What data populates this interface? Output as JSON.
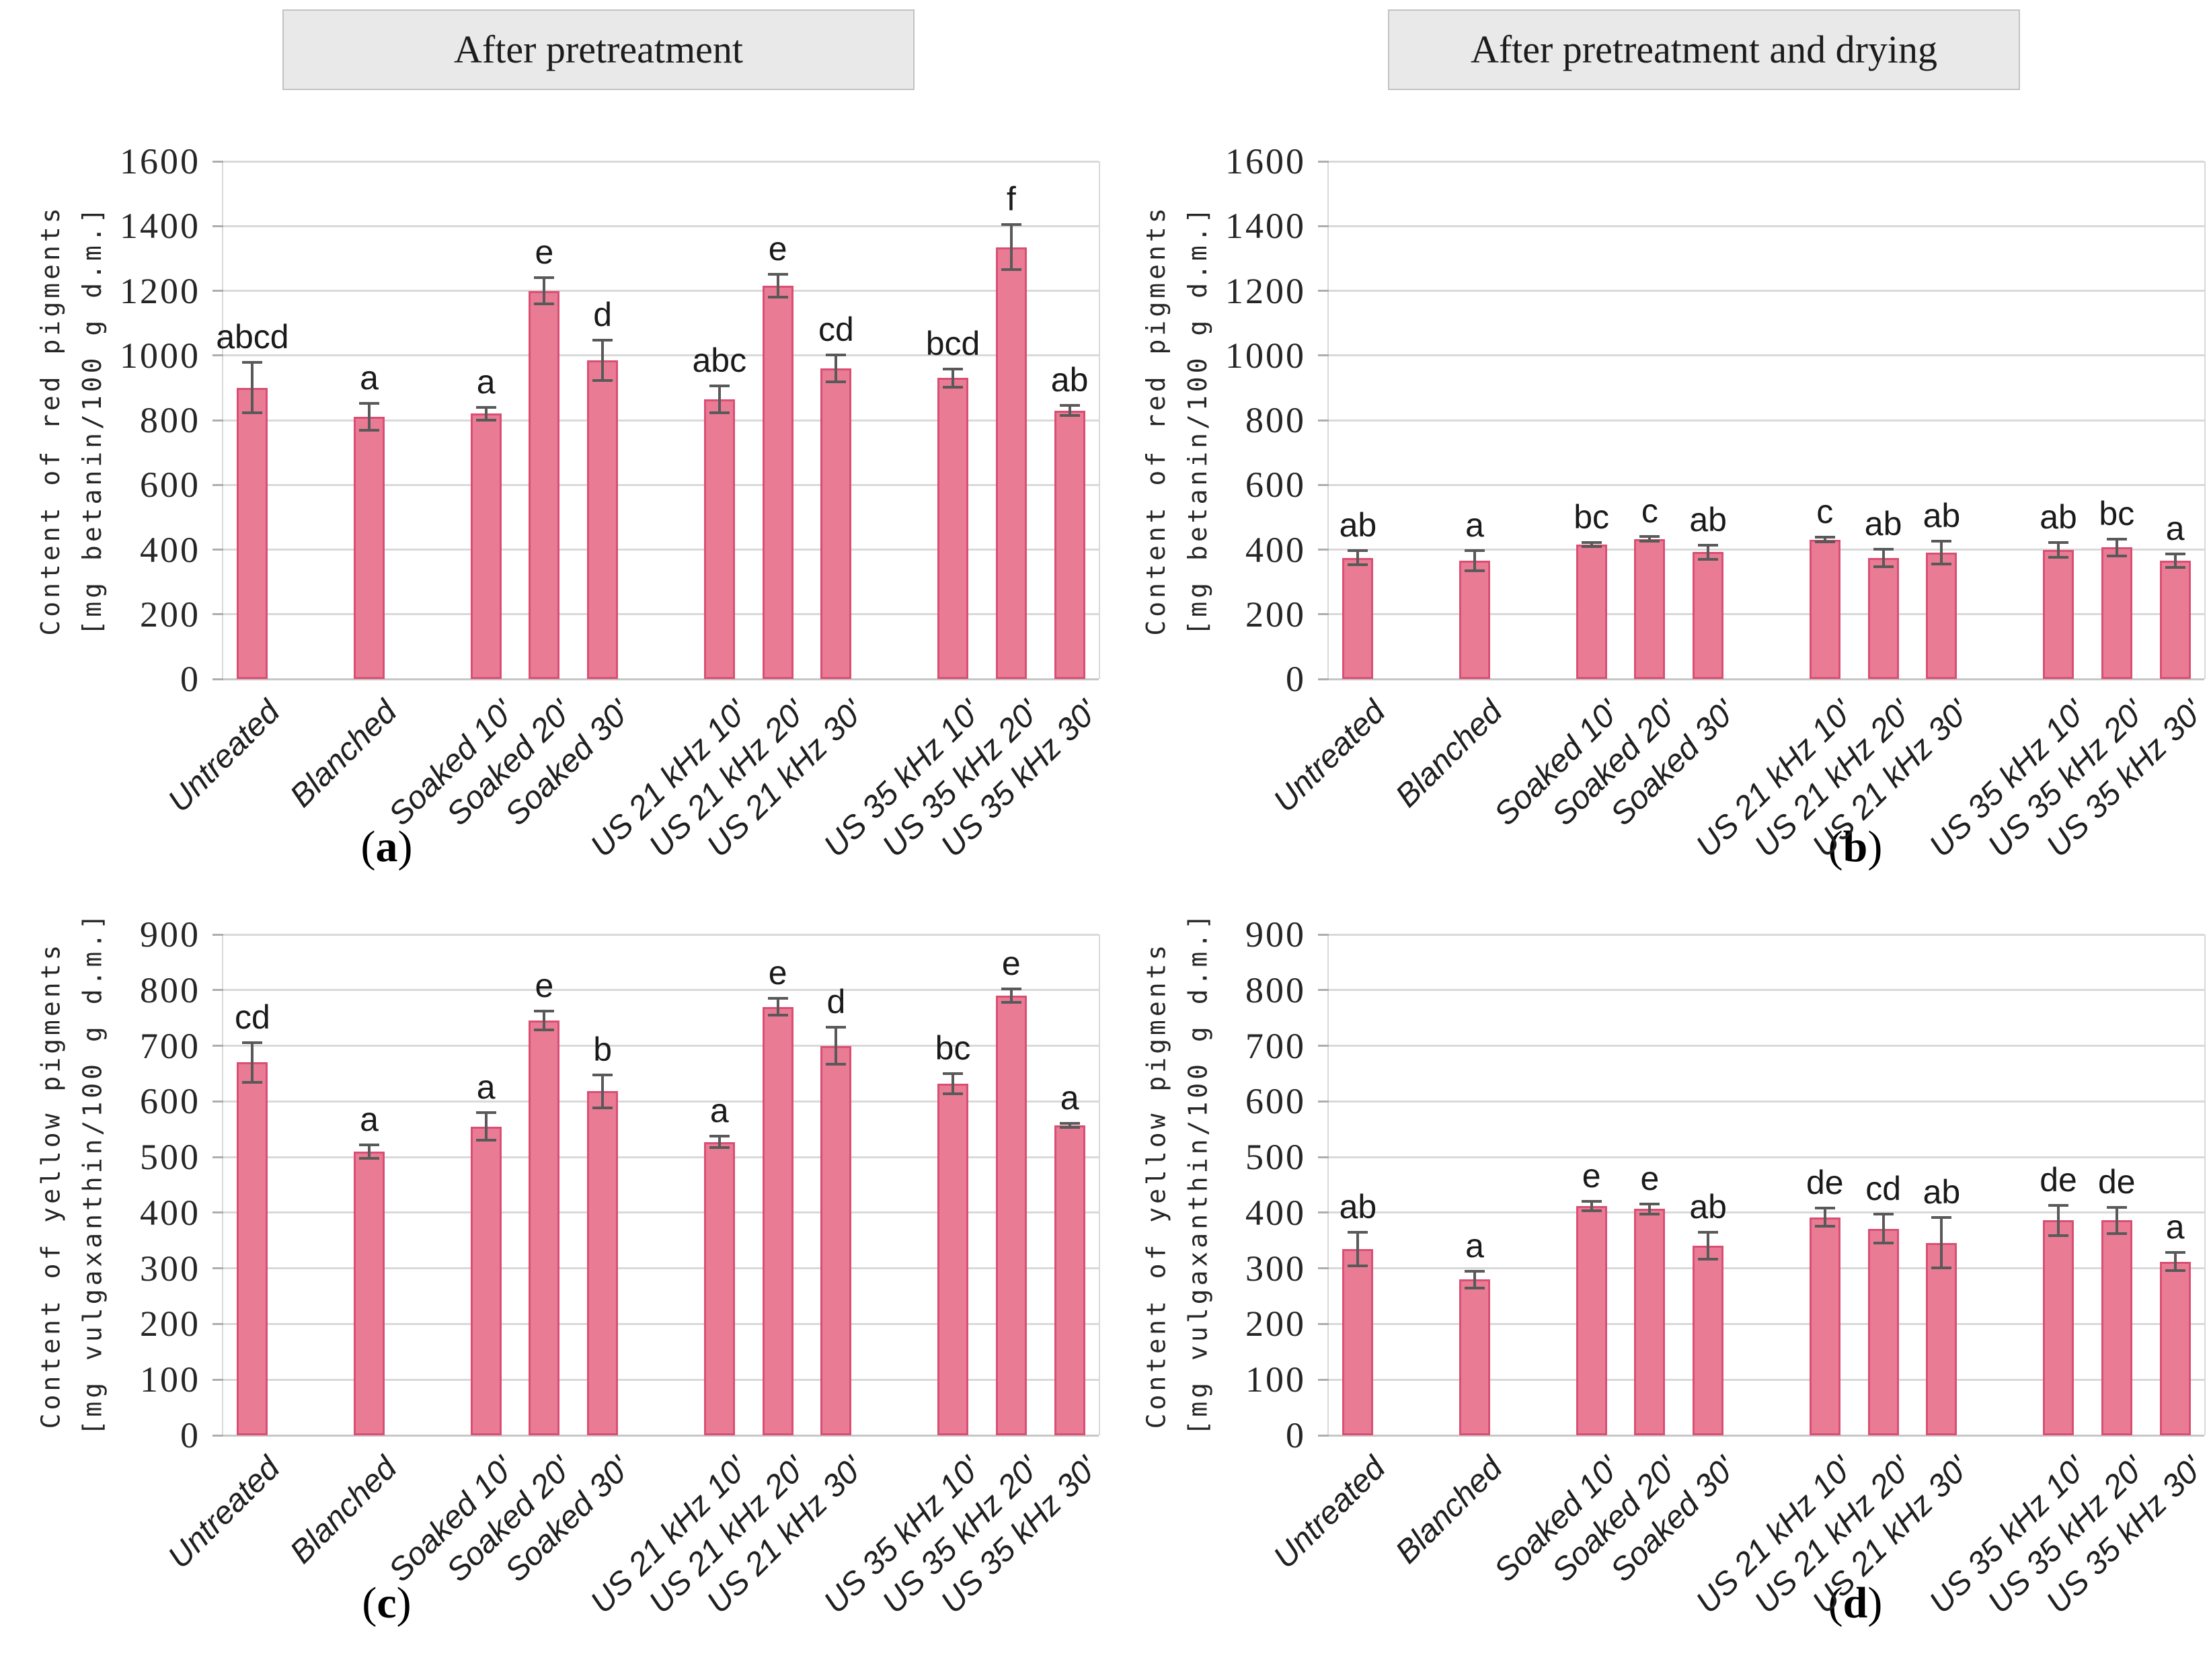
{
  "style": {
    "bar_fill": "#E97C94",
    "bar_edge": "#D94F74",
    "error_color": "#595959",
    "grid_color": "#D9D9D9",
    "baseline_color": "#C6C6C6",
    "header_bg": "#E9E9E9",
    "header_border": "#C3C3C3"
  },
  "chart_data": [
    {
      "panel": "a",
      "type": "bar",
      "header": "After pretreatment",
      "ylabel_lines": [
        "Content of red pigments",
        "[mg betanin/100 g d.m.]"
      ],
      "ylim": [
        0,
        1600
      ],
      "ytick_step": 200,
      "grid": true,
      "legend": "none",
      "categories": [
        "Untreated",
        "Blanched",
        "Soaked 10'",
        "Soaked 20'",
        "Soaked 30'",
        "US 21 kHz 10'",
        "US 21 kHz 20'",
        "US 21 kHz 30'",
        "US 35 kHz 10'",
        "US 35 kHz 20'",
        "US 35 kHz 30'"
      ],
      "values": [
        900,
        810,
        820,
        1200,
        985,
        865,
        1215,
        960,
        930,
        1335,
        830
      ],
      "errors": [
        78,
        42,
        20,
        40,
        62,
        42,
        35,
        42,
        28,
        70,
        15
      ],
      "sig_letters": [
        "abcd",
        "a",
        "a",
        "e",
        "d",
        "abc",
        "e",
        "cd",
        "bcd",
        "f",
        "ab"
      ],
      "caption": {
        "open": "(",
        "letter": "a",
        "close": ")"
      }
    },
    {
      "panel": "b",
      "type": "bar",
      "header": "After pretreatment and drying",
      "ylabel_lines": [
        "Content of red pigments",
        "[mg betanin/100 g d.m.]"
      ],
      "ylim": [
        0,
        1600
      ],
      "ytick_step": 200,
      "grid": true,
      "legend": "none",
      "categories": [
        "Untreated",
        "Blanched",
        "Soaked 10'",
        "Soaked 20'",
        "Soaked 30'",
        "US 21 kHz 10'",
        "US 21 kHz 20'",
        "US 21 kHz 30'",
        "US 35 kHz 10'",
        "US 35 kHz 20'",
        "US 35 kHz 30'"
      ],
      "values": [
        375,
        365,
        415,
        433,
        392,
        431,
        374,
        390,
        399,
        407,
        366
      ],
      "errors": [
        21,
        31,
        6,
        7,
        22,
        8,
        27,
        35,
        22,
        26,
        21
      ],
      "sig_letters": [
        "ab",
        "a",
        "bc",
        "c",
        "ab",
        "c",
        "ab",
        "ab",
        "ab",
        "bc",
        "a"
      ],
      "caption": {
        "open": "(",
        "letter": "b",
        "close": ")"
      }
    },
    {
      "panel": "c",
      "type": "bar",
      "header": "",
      "ylabel_lines": [
        "Content of yellow pigments",
        "[mg vulgaxanthin/100 g d.m.]"
      ],
      "ylim": [
        0,
        900
      ],
      "ytick_step": 100,
      "grid": true,
      "legend": "none",
      "categories": [
        "Untreated",
        "Blanched",
        "Soaked 10'",
        "Soaked 20'",
        "Soaked 30'",
        "US 21 kHz 10'",
        "US 21 kHz 20'",
        "US 21 kHz 30'",
        "US 35 kHz 10'",
        "US 35 kHz 20'",
        "US 35 kHz 30'"
      ],
      "values": [
        670,
        510,
        555,
        745,
        618,
        527,
        770,
        700,
        632,
        790,
        557
      ],
      "errors": [
        36,
        12,
        25,
        17,
        30,
        10,
        15,
        33,
        18,
        12,
        4
      ],
      "sig_letters": [
        "cd",
        "a",
        "a",
        "e",
        "b",
        "a",
        "e",
        "d",
        "bc",
        "e",
        "a"
      ],
      "caption": {
        "open": "(",
        "letter": "c",
        "close": ")"
      }
    },
    {
      "panel": "d",
      "type": "bar",
      "header": "",
      "ylabel_lines": [
        "Content of yellow pigments",
        "[mg vulgaxanthin/100 g d.m.]"
      ],
      "ylim": [
        0,
        900
      ],
      "ytick_step": 100,
      "grid": true,
      "legend": "none",
      "categories": [
        "Untreated",
        "Blanched",
        "Soaked 10'",
        "Soaked 20'",
        "Soaked 30'",
        "US 21 kHz 10'",
        "US 21 kHz 20'",
        "US 21 kHz 30'",
        "US 35 kHz 10'",
        "US 35 kHz 20'",
        "US 35 kHz 30'"
      ],
      "values": [
        335,
        280,
        412,
        407,
        341,
        392,
        371,
        346,
        386,
        386,
        312
      ],
      "errors": [
        30,
        15,
        9,
        9,
        24,
        16,
        26,
        45,
        27,
        24,
        16
      ],
      "sig_letters": [
        "ab",
        "a",
        "e",
        "e",
        "ab",
        "de",
        "cd",
        "ab",
        "de",
        "de",
        "a"
      ],
      "caption": {
        "open": "(",
        "letter": "d",
        "close": ")"
      }
    }
  ]
}
